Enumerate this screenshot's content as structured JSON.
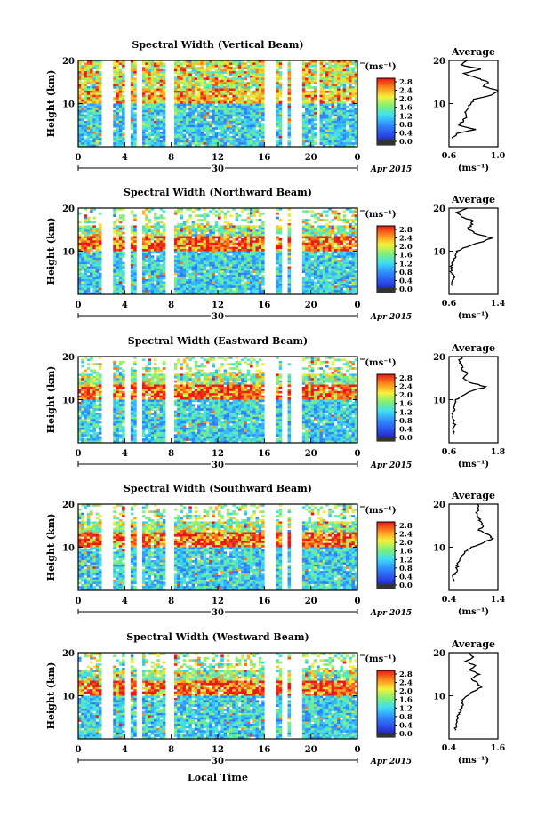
{
  "figure": {
    "x_axis_label": "Local Time",
    "date_label": "Apr 2015",
    "day_label": "30",
    "y_axis_label": "Height (km)",
    "avg_title": "Average",
    "unit_label": "(ms⁻¹)",
    "colorbar_ticks": [
      "2.8",
      "2.4",
      "2.0",
      "1.6",
      "1.2",
      "0.8",
      "0.4",
      "0.0"
    ]
  },
  "chart_data": [
    {
      "type": "heatmap",
      "title": "Spectral Width (Vertical Beam)",
      "xlabel": "Local Time",
      "ylabel": "Height (km)",
      "x_ticks": [
        "0",
        "4",
        "8",
        "12",
        "16",
        "20",
        "0"
      ],
      "y_ticks": [
        "20",
        "10"
      ],
      "xlim": [
        0,
        24
      ],
      "ylim": [
        0,
        20
      ],
      "colorbar": {
        "label": "(ms⁻¹)",
        "range": [
          0.0,
          3.0
        ]
      },
      "data_gaps_hours": [
        [
          2,
          3
        ],
        [
          4.1,
          4.4
        ],
        [
          5,
          5.6
        ],
        [
          7.5,
          8.3
        ],
        [
          16,
          17.1
        ],
        [
          17.5,
          18
        ],
        [
          18.3,
          19.2
        ],
        [
          20.5,
          20.7
        ]
      ],
      "average_profile": {
        "title": "Average",
        "xlabel": "(ms⁻¹)",
        "x_ticks": [
          "0.6",
          "1.0"
        ],
        "xlim": [
          0.6,
          1.0
        ],
        "height_km": [
          2,
          3,
          4,
          5,
          6,
          7,
          8,
          9,
          10,
          11,
          12,
          13,
          14,
          15,
          16,
          17,
          18,
          19,
          20
        ],
        "value": [
          0.62,
          0.66,
          0.82,
          0.68,
          0.72,
          0.74,
          0.73,
          0.76,
          0.78,
          0.8,
          0.95,
          1.0,
          0.88,
          0.92,
          0.82,
          0.72,
          0.86,
          0.7,
          0.75
        ]
      }
    },
    {
      "type": "heatmap",
      "title": "Spectral Width (Northward Beam)",
      "xlabel": "Local Time",
      "ylabel": "Height (km)",
      "x_ticks": [
        "0",
        "4",
        "8",
        "12",
        "16",
        "20",
        "0"
      ],
      "y_ticks": [
        "20",
        "10"
      ],
      "xlim": [
        0,
        24
      ],
      "ylim": [
        0,
        20
      ],
      "colorbar": {
        "label": "(ms⁻¹)",
        "range": [
          0.0,
          3.0
        ]
      },
      "data_gaps_hours": [
        [
          2,
          3
        ],
        [
          4.1,
          4.4
        ],
        [
          5,
          5.6
        ],
        [
          7.5,
          8.3
        ],
        [
          16,
          17.1
        ],
        [
          17.5,
          18
        ],
        [
          18.3,
          19.2
        ]
      ],
      "average_profile": {
        "title": "Average",
        "xlabel": "(ms⁻¹)",
        "x_ticks": [
          "0.6",
          "1.4"
        ],
        "xlim": [
          0.6,
          1.4
        ],
        "height_km": [
          2,
          3,
          4,
          5,
          6,
          7,
          8,
          9,
          10,
          11,
          12,
          13,
          14,
          15,
          16,
          17,
          18,
          19,
          20
        ],
        "value": [
          0.66,
          0.65,
          0.7,
          0.64,
          0.63,
          0.65,
          0.68,
          0.7,
          0.72,
          0.9,
          1.1,
          1.3,
          1.05,
          0.92,
          0.95,
          1.0,
          0.8,
          0.72,
          0.9
        ]
      }
    },
    {
      "type": "heatmap",
      "title": "Spectral Width (Eastward Beam)",
      "xlabel": "Local Time",
      "ylabel": "Height (km)",
      "x_ticks": [
        "0",
        "4",
        "8",
        "12",
        "16",
        "20",
        "0"
      ],
      "y_ticks": [
        "20",
        "10"
      ],
      "xlim": [
        0,
        24
      ],
      "ylim": [
        0,
        20
      ],
      "colorbar": {
        "label": "(ms⁻¹)",
        "range": [
          0.0,
          3.0
        ]
      },
      "data_gaps_hours": [
        [
          2,
          3
        ],
        [
          4.1,
          4.4
        ],
        [
          5,
          5.6
        ],
        [
          7.5,
          8.3
        ],
        [
          16,
          17.1
        ],
        [
          17.5,
          18
        ],
        [
          18.3,
          19.2
        ]
      ],
      "average_profile": {
        "title": "Average",
        "xlabel": "(ms⁻¹)",
        "x_ticks": [
          "0.6",
          "1.8"
        ],
        "xlim": [
          0.6,
          1.8
        ],
        "height_km": [
          2,
          3,
          4,
          5,
          6,
          7,
          8,
          9,
          10,
          11,
          12,
          13,
          14,
          15,
          16,
          17,
          18,
          19,
          20
        ],
        "value": [
          0.72,
          0.7,
          0.74,
          0.7,
          0.68,
          0.7,
          0.72,
          0.74,
          0.76,
          0.95,
          1.15,
          1.5,
          1.1,
          0.95,
          1.05,
          0.92,
          0.9,
          0.85,
          0.95
        ]
      }
    },
    {
      "type": "heatmap",
      "title": "Spectral Width (Southward Beam)",
      "xlabel": "Local Time",
      "ylabel": "Height (km)",
      "x_ticks": [
        "0",
        "4",
        "8",
        "12",
        "16",
        "20",
        "0"
      ],
      "y_ticks": [
        "20",
        "10"
      ],
      "xlim": [
        0,
        24
      ],
      "ylim": [
        0,
        20
      ],
      "colorbar": {
        "label": "(ms⁻¹)",
        "range": [
          0.0,
          3.0
        ]
      },
      "data_gaps_hours": [
        [
          2,
          3
        ],
        [
          4.1,
          4.4
        ],
        [
          5,
          5.6
        ],
        [
          7.5,
          8.3
        ],
        [
          16,
          17.1
        ],
        [
          17.5,
          18
        ],
        [
          18.3,
          19.2
        ]
      ],
      "average_profile": {
        "title": "Average",
        "xlabel": "(ms⁻¹)",
        "x_ticks": [
          "0.4",
          "1.4"
        ],
        "xlim": [
          0.4,
          1.4
        ],
        "height_km": [
          2,
          3,
          4,
          5,
          6,
          7,
          8,
          9,
          10,
          11,
          12,
          13,
          14,
          15,
          16,
          17,
          18,
          19,
          20
        ],
        "value": [
          0.5,
          0.48,
          0.52,
          0.56,
          0.58,
          0.62,
          0.66,
          0.72,
          0.85,
          1.1,
          1.3,
          1.2,
          1.0,
          1.1,
          1.05,
          1.0,
          0.95,
          1.0,
          0.98
        ]
      }
    },
    {
      "type": "heatmap",
      "title": "Spectral Width (Westward Beam)",
      "xlabel": "Local Time",
      "ylabel": "Height (km)",
      "x_ticks": [
        "0",
        "4",
        "8",
        "12",
        "16",
        "20",
        "0"
      ],
      "y_ticks": [
        "20",
        "10"
      ],
      "xlim": [
        0,
        24
      ],
      "ylim": [
        0,
        20
      ],
      "colorbar": {
        "label": "(ms⁻¹)",
        "range": [
          0.0,
          3.0
        ]
      },
      "data_gaps_hours": [
        [
          2,
          3
        ],
        [
          4.1,
          4.4
        ],
        [
          5,
          5.6
        ],
        [
          7.5,
          8.3
        ],
        [
          16,
          17.1
        ],
        [
          17.5,
          18
        ],
        [
          18.3,
          19.2
        ]
      ],
      "average_profile": {
        "title": "Average",
        "xlabel": "(ms⁻¹)",
        "x_ticks": [
          "0.4",
          "1.6"
        ],
        "xlim": [
          0.4,
          1.6
        ],
        "height_km": [
          2,
          3,
          4,
          5,
          6,
          7,
          8,
          9,
          10,
          11,
          12,
          13,
          14,
          15,
          16,
          17,
          18,
          19,
          20
        ],
        "value": [
          0.55,
          0.58,
          0.6,
          0.62,
          0.64,
          0.7,
          0.75,
          0.72,
          0.85,
          1.0,
          1.2,
          1.1,
          0.95,
          1.15,
          0.9,
          1.05,
          0.8,
          1.0,
          0.9
        ]
      }
    }
  ]
}
